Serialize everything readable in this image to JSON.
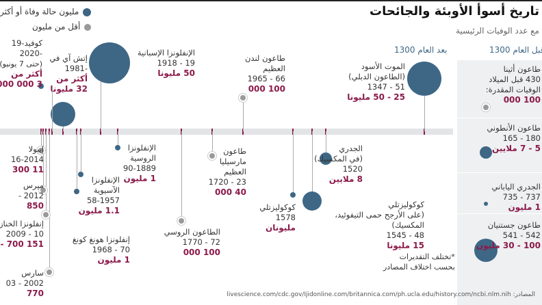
{
  "header": {
    "title": "تاريخ أسوأ الأوبئة والجائحات",
    "subtitle": "مع عدد الوفيات الرئيسية"
  },
  "legend": {
    "large": "مليون حالة وفاة أو أكثر",
    "small": "أقل من مليون"
  },
  "eras": {
    "before": "قبل العام 1300",
    "after": "بعد العام 1300"
  },
  "note": {
    "line1": "*تختلف التقديرات",
    "line2": "بحسب اختلاف المصادر"
  },
  "sources": "المصادر: livescience.com/cdc.gov/Ijidonline.com/britannica.com/ph.ucla.edu/history.com/ncbi.nlm.nih",
  "colors": {
    "large_dot": "#3e6785",
    "small_dot": "#9a9a9a",
    "value": "#8c1a4b",
    "axis": "#e2e4e6"
  },
  "chart_data": {
    "type": "timeline",
    "title": "تاريخ أسوأ الأوبئة والجائحات",
    "subtitle": "مع عدد الوفيات الرئيسية",
    "events": [
      {
        "name": "طاعون أثينا",
        "sub": "",
        "period": "430 قبل الميلاد",
        "extra": "الوفيات المقدرة:",
        "deaths": "100 000",
        "size": "small"
      },
      {
        "name": "طاعون الأنطوني",
        "sub": "",
        "period": "180 - 165",
        "extra": "",
        "deaths": "5 - 7 ملايين",
        "size": "large"
      },
      {
        "name": "الجدري الياباني",
        "sub": "",
        "period": "737 - 735",
        "extra": "",
        "deaths": "1 مليون",
        "size": "large"
      },
      {
        "name": "طاعون جستنيان",
        "sub": "",
        "period": "542 - 541",
        "extra": "",
        "deaths": "100 - 30 مليون",
        "size": "large"
      },
      {
        "name": "الموت الأسود",
        "sub": "(الطاعون الدبلي)",
        "period": "51 - 1347",
        "extra": "",
        "deaths": "25 - 50 مليونا",
        "size": "large"
      },
      {
        "name": "الجدري",
        "sub": "(في المكسيك)",
        "period": "1520",
        "extra": "",
        "deaths": "8 ملايين",
        "size": "large"
      },
      {
        "name": "كوكوليزتلي",
        "sub": "(على الأرجح حمى التيفوئيد،",
        "sub2": "المكسيك)",
        "period": "48 - 1545",
        "extra": "",
        "deaths": "15 مليونا",
        "size": "large"
      },
      {
        "name": "كوكوليزتلي",
        "sub": "",
        "period": "1578",
        "extra": "",
        "deaths": "مليونان",
        "size": "large"
      },
      {
        "name": "طاعون لندن",
        "sub": "العظيم",
        "period": "66 - 1965",
        "extra": "",
        "deaths": "100 000",
        "size": "small"
      },
      {
        "name": "طاعون",
        "sub": "مارسيليا",
        "sub2": "العظيم",
        "period": "23 - 1720",
        "extra": "",
        "deaths": "40 000",
        "size": "small"
      },
      {
        "name": "الطاعون الروسي",
        "sub": "",
        "period": "72 - 1770",
        "extra": "",
        "deaths": "100 000",
        "size": "small"
      },
      {
        "name": "الإنفلونزا",
        "sub": "الروسية",
        "period": "90-1889",
        "extra": "",
        "deaths": "1 مليون",
        "size": "large"
      },
      {
        "name": "الإنفلونزا الإسبانية",
        "sub": "",
        "period": "19 - 1918",
        "extra": "",
        "deaths": "50 مليونا",
        "size": "large"
      },
      {
        "name": "الإنفلونزا",
        "sub": "الآسيوية",
        "period": "58-1957",
        "extra": "",
        "deaths": "1.1 مليون",
        "size": "large"
      },
      {
        "name": "إنفلونزا هونغ كونغ",
        "sub": "",
        "period": "70 - 1968",
        "extra": "",
        "deaths": "1 مليون",
        "size": "large"
      },
      {
        "name": "إتش آي في",
        "sub": "",
        "period": "-1981",
        "extra": "أكثر من",
        "deaths": "32 مليونا",
        "size": "large"
      },
      {
        "name": "سارس",
        "sub": "",
        "period": "2002 - 03",
        "extra": "",
        "deaths": "770",
        "size": "small"
      },
      {
        "name": "إنفلونزا الخنازير",
        "sub": "",
        "period": "10 - 2009",
        "extra": "",
        "deaths": "151 700 - 575 400",
        "size": "small"
      },
      {
        "name": "ميرس",
        "sub": "",
        "period": "2012 -",
        "extra": "",
        "deaths": "850",
        "size": "small"
      },
      {
        "name": "إيبولا",
        "sub": "",
        "period": "16-2014",
        "extra": "",
        "deaths": "11 300",
        "size": "small"
      },
      {
        "name": "كوفيد-19",
        "sub": "",
        "period": "-2020",
        "extra": "أكثر من",
        "deaths": "3 000 000",
        "note": "(حتى 7 يونيو)",
        "size": "large"
      }
    ]
  }
}
